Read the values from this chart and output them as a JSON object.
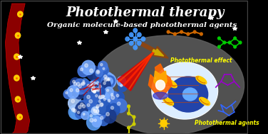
{
  "title1": "Photothermal therapy",
  "title2": "Organic molecule-based photothermal agents",
  "label_effect": "Photothermal effect",
  "label_agents": "Photothermal agents",
  "bg_color": "#000000",
  "cloud_color": "#555555",
  "title1_color": "#ffffff",
  "title2_color": "#ffffff",
  "effect_color": "#ffff00",
  "agents_color": "#ffff00",
  "fig_width": 3.76,
  "fig_height": 1.89
}
